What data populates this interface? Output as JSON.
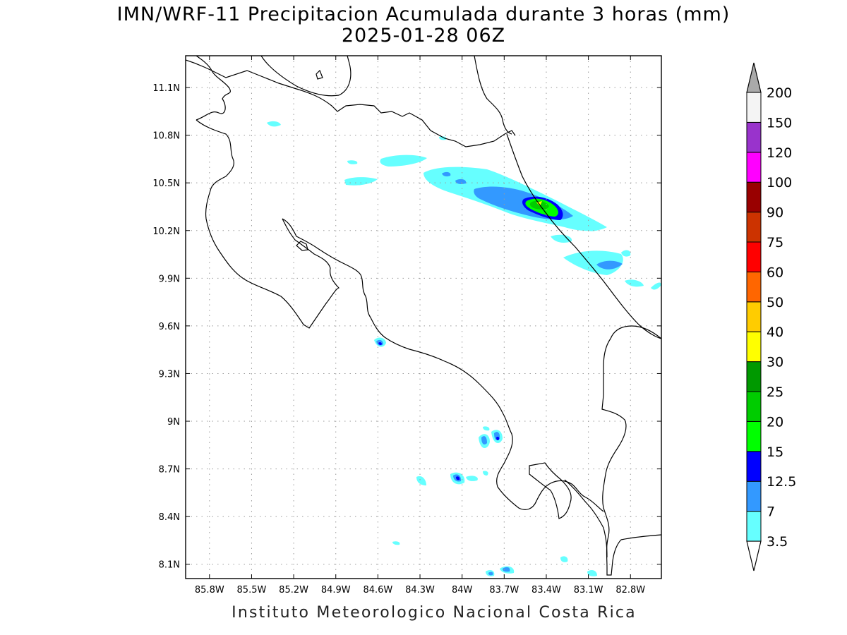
{
  "title": {
    "line1": "IMN/WRF-11 Precipitacion Acumulada durante 3 horas (mm)",
    "line2": "2025-01-28 06Z"
  },
  "footer": "Instituto Meteorologico Nacional Costa Rica",
  "map": {
    "lon_range": [
      -85.97,
      -82.58
    ],
    "lat_range": [
      8.01,
      11.3
    ],
    "lon_ticks": [
      {
        "value": -85.8,
        "label": "85.8W"
      },
      {
        "value": -85.5,
        "label": "85.5W"
      },
      {
        "value": -85.2,
        "label": "85.2W"
      },
      {
        "value": -84.9,
        "label": "84.9W"
      },
      {
        "value": -84.6,
        "label": "84.6W"
      },
      {
        "value": -84.3,
        "label": "84.3W"
      },
      {
        "value": -84.0,
        "label": "84W"
      },
      {
        "value": -83.7,
        "label": "83.7W"
      },
      {
        "value": -83.4,
        "label": "83.4W"
      },
      {
        "value": -83.1,
        "label": "83.1W"
      },
      {
        "value": -82.8,
        "label": "82.8W"
      }
    ],
    "lat_ticks": [
      {
        "value": 11.1,
        "label": "11.1N"
      },
      {
        "value": 10.8,
        "label": "10.8N"
      },
      {
        "value": 10.5,
        "label": "10.5N"
      },
      {
        "value": 10.2,
        "label": "10.2N"
      },
      {
        "value": 9.9,
        "label": "9.9N"
      },
      {
        "value": 9.6,
        "label": "9.6N"
      },
      {
        "value": 9.3,
        "label": "9.3N"
      },
      {
        "value": 9.0,
        "label": "9N"
      },
      {
        "value": 8.7,
        "label": "8.7N"
      },
      {
        "value": 8.4,
        "label": "8.4N"
      },
      {
        "value": 8.1,
        "label": "8.1N"
      }
    ],
    "grid": true
  },
  "colorbar": {
    "levels": [
      {
        "label": "3.5",
        "color": "#66ffff"
      },
      {
        "label": "7",
        "color": "#3399ff"
      },
      {
        "label": "12.5",
        "color": "#0000ff"
      },
      {
        "label": "15",
        "color": "#00ff00"
      },
      {
        "label": "20",
        "color": "#00cc00"
      },
      {
        "label": "25",
        "color": "#009900"
      },
      {
        "label": "30",
        "color": "#ffff00"
      },
      {
        "label": "40",
        "color": "#ffcc00"
      },
      {
        "label": "50",
        "color": "#ff6600"
      },
      {
        "label": "60",
        "color": "#ff0000"
      },
      {
        "label": "75",
        "color": "#cc3300"
      },
      {
        "label": "90",
        "color": "#990000"
      },
      {
        "label": "100",
        "color": "#ff00ff"
      },
      {
        "label": "120",
        "color": "#9933cc"
      },
      {
        "label": "150",
        "color": "#f4f4f4"
      },
      {
        "label": "200",
        "color": "#aaaaaa"
      }
    ],
    "below_color": "#ffffff",
    "above_color": "#aaaaaa"
  },
  "precip_colors": {
    "light": "#66ffff",
    "moderate": "#3399ff",
    "heavy": "#0000ff",
    "intense1": "#00ff00",
    "intense2": "#00cc00",
    "core": "#ffff00"
  }
}
